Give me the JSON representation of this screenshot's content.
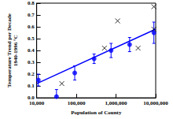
{
  "chart_data": {
    "type": "scatter",
    "xlabel": "Population of County",
    "ylabel": "Temperature Trend per Decade\n1940-1996 °C",
    "log": "x",
    "xlim": [
      10000,
      10000000
    ],
    "xticks": [
      {
        "value": 10000,
        "label": "10,000"
      },
      {
        "value": 100000,
        "label": "100,000"
      },
      {
        "value": 1000000,
        "label": "1,000,000"
      },
      {
        "value": 10000000,
        "label": "10,000,000"
      }
    ],
    "ylim": [
      0,
      0.8
    ],
    "yticks": [
      {
        "value": 0,
        "label": "0.0"
      },
      0.1,
      0.2,
      0.3,
      0.4,
      0.5,
      0.6,
      0.7,
      0.8
    ],
    "series": [
      {
        "type": "scatter",
        "marker": "circle",
        "color": "#0000ff",
        "x": [
          11000,
          31600,
          91000,
          280000,
          750000,
          2200000,
          9000000
        ],
        "values": [
          0.15,
          0.01,
          0.21,
          0.33,
          0.4,
          0.45,
          0.55
        ],
        "errors": [
          0.05,
          0.06,
          0.06,
          0.04,
          0.06,
          0.06,
          0.09
        ]
      },
      {
        "type": "scatter",
        "marker": "x",
        "color": "#000000",
        "x": [
          43000,
          510000,
          1100000,
          3600000,
          9000000,
          9000000
        ],
        "values": [
          0.12,
          0.42,
          0.65,
          0.42,
          0.77,
          0.58
        ]
      },
      {
        "type": "line",
        "line_style": "solid",
        "color": "#0000ff",
        "x": [
          10000,
          10000000
        ],
        "values": [
          0.12,
          0.58
        ]
      }
    ]
  }
}
